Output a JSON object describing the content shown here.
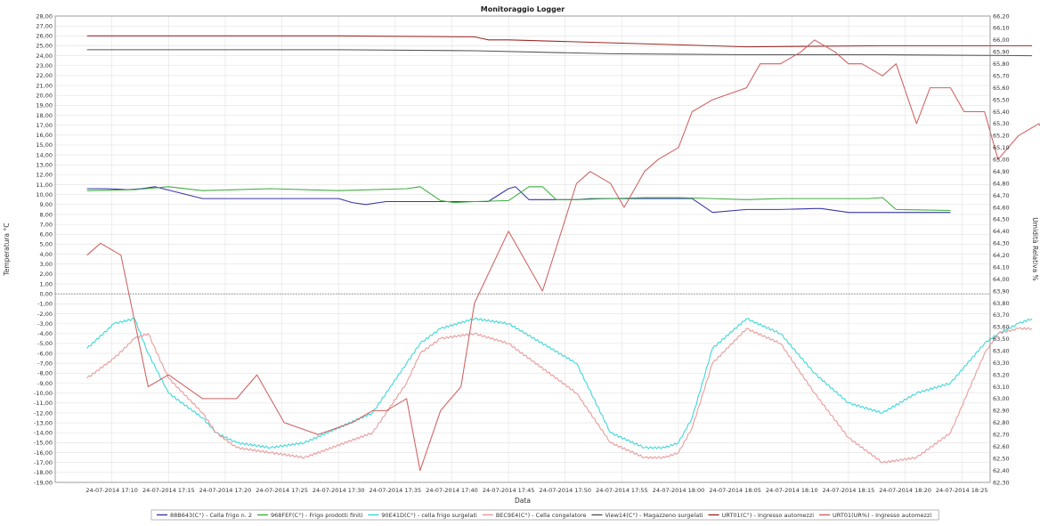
{
  "chart_data": {
    "type": "line",
    "title": "Monitoraggio Logger",
    "xlabel": "Data",
    "ylabel": "Temperatura °C",
    "y2label": "Umidità Relativa %",
    "ylim": [
      -19,
      28
    ],
    "y2lim": [
      62.3,
      66.2
    ],
    "grid": true,
    "legend_position": "bottom",
    "x_ticks": [
      "24-07-2014 17:10",
      "24-07-2014 17:15",
      "24-07-2014 17:20",
      "24-07-2014 17:25",
      "24-07-2014 17:30",
      "24-07-2014 17:35",
      "24-07-2014 17:40",
      "24-07-2014 17:45",
      "24-07-2014 17:50",
      "24-07-2014 17:55",
      "24-07-2014 18:00",
      "24-07-2014 18:05",
      "24-07-2014 18:10",
      "24-07-2014 18:15",
      "24-07-2014 18:20",
      "24-07-2014 18:25"
    ],
    "y_ticks": [
      "28,00",
      "27,00",
      "26,00",
      "25,00",
      "24,00",
      "23,00",
      "22,00",
      "21,00",
      "20,00",
      "19,00",
      "18,00",
      "17,00",
      "16,00",
      "15,00",
      "14,00",
      "13,00",
      "12,00",
      "11,00",
      "10,00",
      "9,00",
      "8,00",
      "7,00",
      "6,00",
      "5,00",
      "4,00",
      "3,00",
      "2,00",
      "1,00",
      "0,00",
      "-1,00",
      "-2,00",
      "-3,00",
      "-4,00",
      "-5,00",
      "-6,00",
      "-7,00",
      "-8,00",
      "-9,00",
      "-10,00",
      "-11,00",
      "-12,00",
      "-13,00",
      "-14,00",
      "-15,00",
      "-16,00",
      "-17,00",
      "-18,00",
      "-19,00"
    ],
    "y2_ticks": [
      "66,20",
      "66,10",
      "66,00",
      "65,90",
      "65,80",
      "65,70",
      "65,60",
      "65,50",
      "65,40",
      "65,30",
      "65,20",
      "65,10",
      "65,00",
      "64,90",
      "64,80",
      "64,70",
      "64,60",
      "64,50",
      "64,40",
      "64,30",
      "64,20",
      "64,10",
      "64,00",
      "63,90",
      "63,80",
      "63,70",
      "63,60",
      "63,50",
      "63,40",
      "63,30",
      "63,20",
      "63,10",
      "63,00",
      "62,90",
      "62,80",
      "62,70",
      "62,60",
      "62,50",
      "62,40",
      "62,30"
    ],
    "series": [
      {
        "name": "88B643(C°) - Cella frigo n. 2",
        "axis": "left",
        "color": "#3838a8",
        "smooth": false,
        "x": [
          17.13,
          17.16,
          17.19,
          17.21,
          17.23,
          17.3,
          17.5,
          17.52,
          17.54,
          17.57,
          17.6,
          17.61,
          17.63,
          17.67,
          17.72,
          17.75,
          17.76,
          17.78,
          17.79,
          17.83,
          17.85,
          17.87,
          17.9,
          17.95,
          17.98,
          18.0,
          18.02,
          18.05,
          18.1,
          18.15,
          18.2,
          18.21,
          18.25,
          18.4
        ],
        "y": [
          10.6,
          10.6,
          10.5,
          10.6,
          10.8,
          9.6,
          9.6,
          9.2,
          9.0,
          9.3,
          9.3,
          9.3,
          9.3,
          9.3,
          9.3,
          10.6,
          10.8,
          9.5,
          9.5,
          9.5,
          9.5,
          9.6,
          9.6,
          9.6,
          9.6,
          9.6,
          9.6,
          8.2,
          8.5,
          8.5,
          8.6,
          8.6,
          8.2,
          8.2
        ]
      },
      {
        "name": "968FEF(C°) - Frigo prodotti finiti",
        "axis": "left",
        "color": "#3fae3f",
        "smooth": false,
        "x": [
          17.13,
          17.2,
          17.25,
          17.3,
          17.4,
          17.5,
          17.6,
          17.62,
          17.65,
          17.67,
          17.7,
          17.75,
          17.78,
          17.8,
          17.82,
          17.85,
          17.9,
          17.95,
          18.0,
          18.05,
          18.1,
          18.15,
          18.2,
          18.25,
          18.28,
          18.3,
          18.32,
          18.4
        ],
        "y": [
          10.4,
          10.5,
          10.8,
          10.4,
          10.6,
          10.4,
          10.6,
          10.8,
          9.4,
          9.2,
          9.3,
          9.4,
          10.8,
          10.8,
          9.5,
          9.5,
          9.6,
          9.7,
          9.7,
          9.6,
          9.5,
          9.6,
          9.6,
          9.6,
          9.6,
          9.7,
          8.5,
          8.4
        ]
      },
      {
        "name": "90E41D(C°) - cella frigo surgelati",
        "axis": "left",
        "color": "#3ad6d6",
        "smooth": true,
        "x": [
          17.13,
          17.17,
          17.2,
          17.22,
          17.25,
          17.3,
          17.32,
          17.35,
          17.4,
          17.45,
          17.55,
          17.6,
          17.62,
          17.65,
          17.7,
          17.75,
          17.85,
          17.9,
          17.95,
          17.98,
          18.0,
          18.02,
          18.05,
          18.1,
          18.15,
          18.2,
          18.25,
          18.3,
          18.35,
          18.4,
          18.45,
          18.47,
          18.5,
          18.52
        ],
        "y": [
          -5.5,
          -3.0,
          -2.5,
          -6.0,
          -10.0,
          -12.5,
          -14.0,
          -15.0,
          -15.5,
          -15.0,
          -12.0,
          -7.0,
          -5.0,
          -3.5,
          -2.5,
          -3.0,
          -7.0,
          -14.0,
          -15.5,
          -15.5,
          -15.0,
          -12.5,
          -5.5,
          -2.5,
          -4.0,
          -8.0,
          -11.0,
          -12.0,
          -10.0,
          -9.0,
          -5.0,
          -4.0,
          -3.0,
          -2.5
        ]
      },
      {
        "name": "BEC9E4(C°) - Cella congelatore",
        "axis": "left",
        "color": "#e89898",
        "smooth": true,
        "x": [
          17.13,
          17.17,
          17.2,
          17.22,
          17.25,
          17.3,
          17.32,
          17.35,
          17.4,
          17.45,
          17.55,
          17.6,
          17.62,
          17.65,
          17.7,
          17.75,
          17.85,
          17.9,
          17.95,
          17.98,
          18.0,
          18.02,
          18.05,
          18.1,
          18.15,
          18.2,
          18.25,
          18.3,
          18.35,
          18.4,
          18.45,
          18.47,
          18.5,
          18.52
        ],
        "y": [
          -8.5,
          -6.5,
          -4.5,
          -4.0,
          -8.5,
          -12.0,
          -14.0,
          -15.5,
          -16.0,
          -16.5,
          -14.0,
          -9.0,
          -6.0,
          -4.5,
          -4.0,
          -5.0,
          -10.0,
          -15.0,
          -16.5,
          -16.5,
          -16.0,
          -13.5,
          -7.0,
          -3.5,
          -5.0,
          -10.0,
          -14.5,
          -17.0,
          -16.5,
          -14.0,
          -6.0,
          -4.0,
          -3.5,
          -3.5
        ]
      },
      {
        "name": "View14(C°) - Magazzeno surgelati",
        "axis": "left",
        "color": "#555555",
        "smooth": false,
        "x": [
          17.13,
          17.3,
          17.5,
          17.7,
          17.9,
          18.1,
          18.3,
          18.52
        ],
        "y": [
          24.6,
          24.6,
          24.6,
          24.5,
          24.2,
          24.1,
          24.1,
          24.0
        ]
      },
      {
        "name": "URT01(C°) - Ingresso automezzi",
        "axis": "left",
        "color": "#a02828",
        "smooth": false,
        "x": [
          17.13,
          17.3,
          17.5,
          17.7,
          17.72,
          17.75,
          17.9,
          18.1,
          18.3,
          18.52
        ],
        "y": [
          26.0,
          26.0,
          26.0,
          25.9,
          25.6,
          25.6,
          25.3,
          24.9,
          25.0,
          25.0
        ]
      },
      {
        "name": "URT01(UR%) - Ingresso automezzi",
        "axis": "right",
        "color": "#d06060",
        "smooth": false,
        "x": [
          17.13,
          17.15,
          17.18,
          17.22,
          17.25,
          17.3,
          17.35,
          17.38,
          17.42,
          17.47,
          17.52,
          17.55,
          17.57,
          17.6,
          17.62,
          17.65,
          17.68,
          17.7,
          17.75,
          17.8,
          17.85,
          17.87,
          17.9,
          17.92,
          17.95,
          17.97,
          18.0,
          18.02,
          18.05,
          18.1,
          18.12,
          18.15,
          18.18,
          18.2,
          18.23,
          18.25,
          18.27,
          18.3,
          18.32,
          18.35,
          18.37,
          18.4,
          18.42,
          18.45,
          18.47,
          18.5,
          18.53,
          18.55
        ],
        "y": [
          64.2,
          64.3,
          64.2,
          63.1,
          63.2,
          63.0,
          63.0,
          63.2,
          62.8,
          62.7,
          62.8,
          62.9,
          62.9,
          63.0,
          62.4,
          62.9,
          63.1,
          63.8,
          64.4,
          63.9,
          64.8,
          64.9,
          64.8,
          64.6,
          64.9,
          65.0,
          65.1,
          65.4,
          65.5,
          65.6,
          65.8,
          65.8,
          65.9,
          66.0,
          65.9,
          65.8,
          65.8,
          65.7,
          65.8,
          65.3,
          65.6,
          65.6,
          65.4,
          65.4,
          65.0,
          65.2,
          65.3,
          65.1
        ]
      }
    ]
  }
}
